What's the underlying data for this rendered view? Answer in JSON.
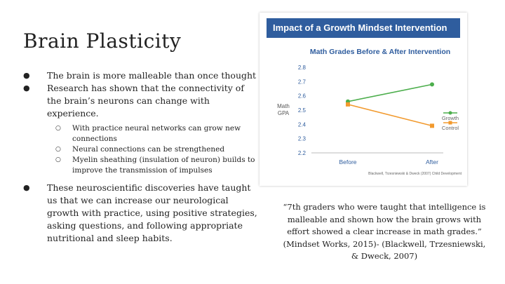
{
  "slide": {
    "title": "Brain Plasticity",
    "bullets": [
      {
        "text": "The brain is more malleable than once thought",
        "sub": []
      },
      {
        "text": "Research has shown that the connectivity of the brain’s neurons can change with experience.",
        "sub": [
          "With practice neural networks can grow new connections",
          "Neural connections can be strengthened",
          "Myelin sheathing (insulation of neuron) builds to improve the transmission of impulses"
        ]
      },
      {
        "text": "These neuroscientific discoveries have taught us that we can increase our neurological growth with practice, using positive strategies, asking questions, and following appropriate nutritional and sleep habits.",
        "sub": []
      }
    ],
    "quote": "“7th graders who were taught that intelligence is malleable and shown how the brain grows with effort showed a clear increase in math grades.” (Mindset Works, 2015)- (Blackwell, Trzesniewski, & Dweck, 2007)"
  },
  "chart_header": "Impact of a Growth Mindset Intervention",
  "chart_data": {
    "type": "line",
    "title": "Math Grades Before & After Intervention",
    "ylabel": "Math GPA",
    "xlabel": "",
    "categories": [
      "Before",
      "After"
    ],
    "yticks": [
      "2.8",
      "2.7",
      "2.6",
      "2.5",
      "2.4",
      "2.3",
      "2.2"
    ],
    "ylim": [
      2.2,
      2.8
    ],
    "series": [
      {
        "name": "Growth",
        "color": "#4cae4c",
        "values": [
          2.56,
          2.68
        ]
      },
      {
        "name": "Control",
        "color": "#f29a2e",
        "values": [
          2.54,
          2.39
        ]
      }
    ],
    "legend": "right",
    "grid": false,
    "source": "Blackwell, Trzesniewski & Dweck (2007) Child Development"
  }
}
